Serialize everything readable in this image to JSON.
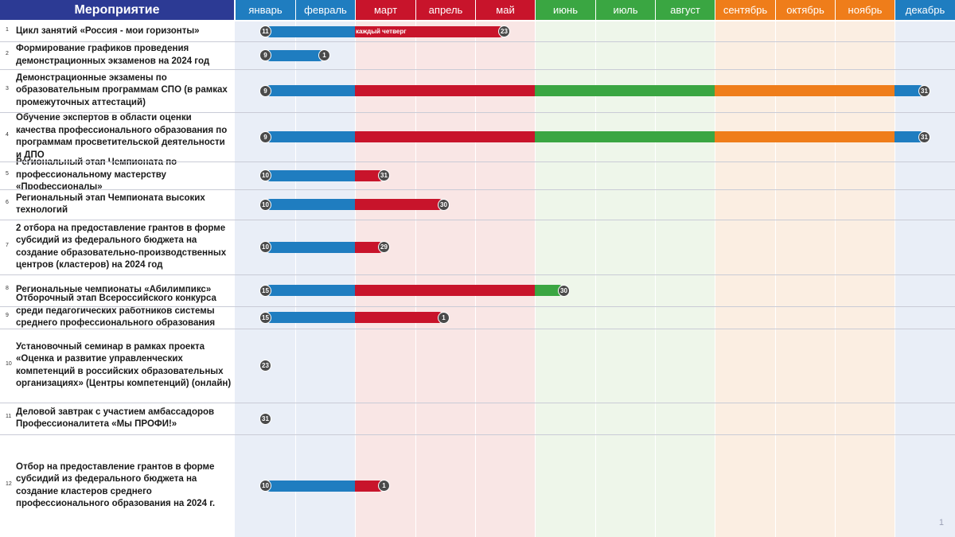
{
  "header": {
    "title": "Мероприятие"
  },
  "months": [
    {
      "label": "январь",
      "color": "#1f7dc0",
      "bg": "#e9eef7"
    },
    {
      "label": "февраль",
      "color": "#1f7dc0",
      "bg": "#e9eef7"
    },
    {
      "label": "март",
      "color": "#c8142b",
      "bg": "#f9e6e5"
    },
    {
      "label": "апрель",
      "color": "#c8142b",
      "bg": "#f9e6e5"
    },
    {
      "label": "май",
      "color": "#c8142b",
      "bg": "#f9e6e5"
    },
    {
      "label": "июнь",
      "color": "#3aa642",
      "bg": "#eef6ea"
    },
    {
      "label": "июль",
      "color": "#3aa642",
      "bg": "#eef6ea"
    },
    {
      "label": "август",
      "color": "#3aa642",
      "bg": "#eef6ea"
    },
    {
      "label": "сентябрь",
      "color": "#ef7d1a",
      "bg": "#fbeee2"
    },
    {
      "label": "октябрь",
      "color": "#ef7d1a",
      "bg": "#fbeee2"
    },
    {
      "label": "ноябрь",
      "color": "#ef7d1a",
      "bg": "#fbeee2"
    },
    {
      "label": "декабрь",
      "color": "#1f7dc0",
      "bg": "#e9eef7"
    }
  ],
  "rows": [
    {
      "num": "1",
      "text": "Цикл занятий «Россия - мои горизонты»",
      "start": "11",
      "end": "23",
      "note": "каждый четверг"
    },
    {
      "num": "2",
      "text": "Формирование графиков проведения демонстрационных экзаменов на 2024 год",
      "start": "9",
      "end": "1"
    },
    {
      "num": "3",
      "text": "Демонстрационные экзамены по образовательным программам СПО (в рамках промежуточных аттестаций)",
      "start": "9",
      "end": "31"
    },
    {
      "num": "4",
      "text": "Обучение экспертов в области оценки качества профессионального образования по программам просветительской деятельности и ДПО",
      "start": "9",
      "end": "31"
    },
    {
      "num": "5",
      "text": "Региональный этап Чемпионата по профессиональному мастерству «Профессионалы»",
      "start": "10",
      "end": "31"
    },
    {
      "num": "6",
      "text": "Региональный этап Чемпионата высоких технологий",
      "start": "10",
      "end": "30"
    },
    {
      "num": "7",
      "text": "2 отбора на предоставление грантов в форме субсидий из федерального бюджета на создание образовательно-производственных центров (кластеров) на 2024 год",
      "start": "10",
      "end": "29"
    },
    {
      "num": "8",
      "text": "Региональные чемпионаты «Абилимпикс»",
      "start": "15",
      "end": "30"
    },
    {
      "num": "9",
      "text": "Отборочный этап Всероссийского конкурса среди педагогических работников системы среднего профессионального образования «Мастер года»",
      "start": "15",
      "end": "1"
    },
    {
      "num": "10",
      "text": "Установочный семинар в рамках проекта «Оценка и развитие управленческих компетенций в российских образовательных организациях» (Центры компетенций) (онлайн)",
      "start": "23"
    },
    {
      "num": "11",
      "text": "Деловой завтрак с участием амбассадоров Профессионалитета «Мы ПРОФИ!»",
      "start": "31"
    },
    {
      "num": "12",
      "text": "Отбор на предоставление грантов в форме субсидий из федерального бюджета на создание кластеров среднего профессионального образования на 2024 г.",
      "start": "10",
      "end": "1"
    }
  ],
  "footer": {
    "page": "1"
  }
}
